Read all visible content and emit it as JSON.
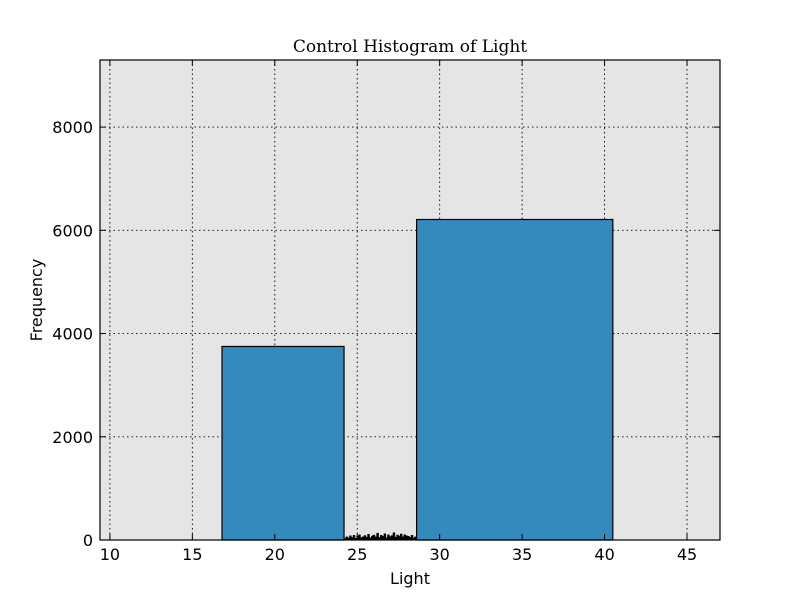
{
  "chart_data": {
    "type": "bar",
    "title": "Control Histogram of Light",
    "xlabel": "Light",
    "ylabel": "Frequency",
    "xlim": [
      9.4,
      47
    ],
    "ylim": [
      0,
      9300
    ],
    "xticks": [
      10,
      15,
      20,
      25,
      30,
      35,
      40,
      45
    ],
    "yticks": [
      0,
      2000,
      4000,
      6000,
      8000
    ],
    "grid": true,
    "bar_color": "#348abd",
    "plot_background": "#e5e5e5",
    "bins": [
      {
        "x0": 16.8,
        "x1": 24.2,
        "value": 3750
      },
      {
        "x0": 24.2,
        "x1": 28.6,
        "value": 80,
        "note": "many small bars"
      },
      {
        "x0": 28.6,
        "x1": 40.5,
        "value": 6210
      }
    ],
    "small_bins": {
      "x0": 24.2,
      "x1": 28.6,
      "values": [
        30,
        60,
        40,
        80,
        50,
        90,
        35,
        70,
        100,
        45,
        60,
        85,
        55,
        110,
        40,
        75,
        95,
        60,
        130,
        50,
        90,
        70,
        120,
        45,
        100,
        65,
        85,
        140,
        55,
        95,
        75,
        115,
        60,
        100,
        80,
        70,
        50,
        90,
        40,
        60
      ]
    }
  }
}
